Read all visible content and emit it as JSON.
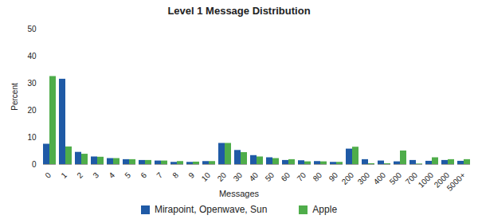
{
  "chart_data": {
    "type": "bar",
    "title": "Level 1 Message Distribution",
    "x_label": "Messages",
    "y_label": "Percent",
    "categories": [
      "0",
      "1",
      "2",
      "3",
      "4",
      "5",
      "6",
      "7",
      "8",
      "9",
      "10",
      "20",
      "30",
      "40",
      "50",
      "60",
      "70",
      "80",
      "90",
      "200",
      "300",
      "400",
      "500",
      "700",
      "1000",
      "2000",
      "5000+"
    ],
    "series": [
      {
        "name": "Mirapoint, Openwave, Sun",
        "color": "#1f5aa6",
        "values": [
          7.5,
          31.5,
          4.5,
          2.8,
          2.2,
          1.8,
          1.5,
          1.3,
          0.8,
          0.8,
          1.1,
          7.8,
          5.2,
          3.3,
          2.5,
          1.5,
          1.4,
          1.1,
          0.8,
          5.7,
          1.8,
          1.3,
          1.0,
          1.5,
          1.2,
          1.5,
          1.2
        ]
      },
      {
        "name": "Apple",
        "color": "#4fad4a",
        "values": [
          32.5,
          6.5,
          3.8,
          2.7,
          2.2,
          1.8,
          1.5,
          1.3,
          1.1,
          0.9,
          1.1,
          7.8,
          4.4,
          2.8,
          2.2,
          1.8,
          1.0,
          1.0,
          0.8,
          6.4,
          0.3,
          0.3,
          5.0,
          0.2,
          2.5,
          1.8,
          1.8
        ]
      }
    ],
    "ylim": [
      0,
      50
    ],
    "yticks": [
      0,
      10,
      20,
      30,
      40,
      50
    ],
    "grid": false,
    "legend": "bottom"
  }
}
